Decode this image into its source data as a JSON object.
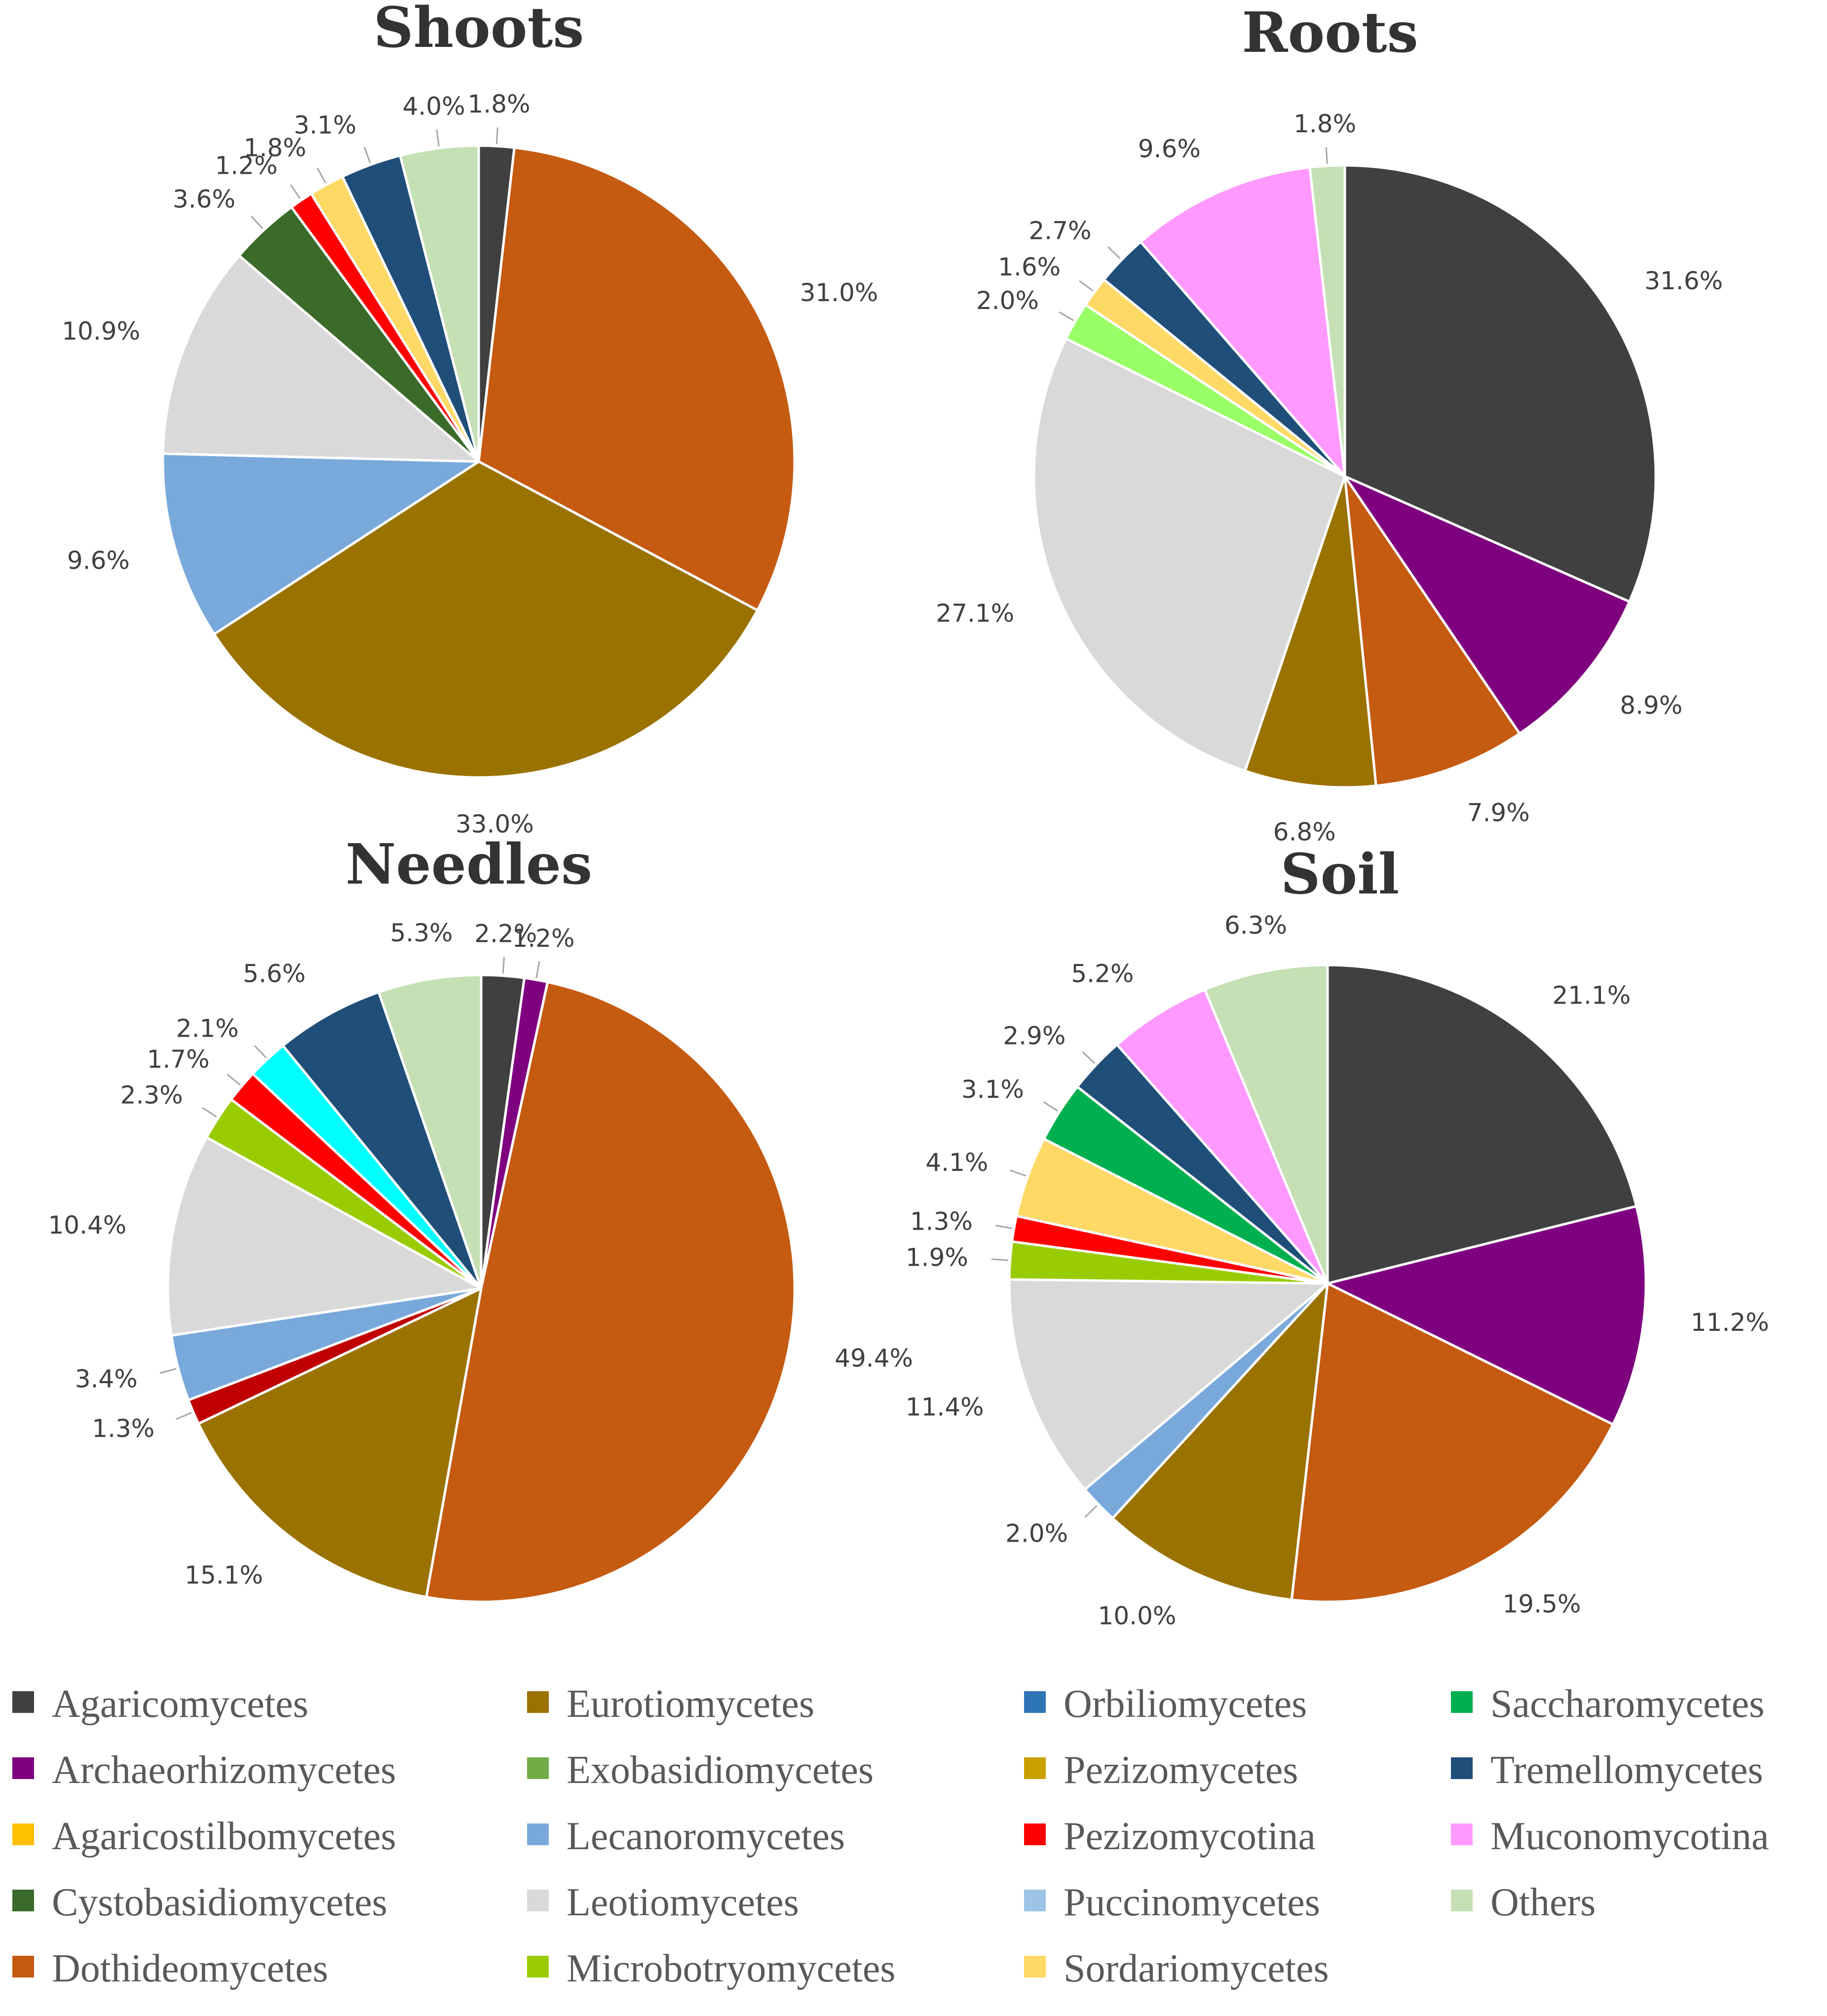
{
  "colors": {
    "Agaricomycetes": "#404040",
    "Archaeorhizomycetes": "#7f007f",
    "Agaricostilbomycetes": "#ffc000",
    "Cystobasidiomycetes": "#3b6b2a",
    "Dothideomycetes": "#c55a11",
    "Eurotiomycetes": "#9a7200",
    "Exobasidiomycetes": "#70ad47",
    "Lecanoromycetes": "#79a9db",
    "Leotiomycetes": "#d9d9d9",
    "Microbotryomycetes": "#99cc00",
    "Orbiliomycetes": "#2e75b6",
    "Pezizomycetes": "#c9a000",
    "Pezizomycotina": "#ff0000",
    "Puccinomycetes": "#9dc3e6",
    "Sordariomycetes": "#ffd966",
    "Saccharomycetes": "#00b050",
    "Tremellomycetes": "#1f4e79",
    "Muconomycotina": "#ff99ff",
    "Others": "#c5e0b4",
    "Cyan": "#00ffff",
    "DarkRed": "#c00000",
    "LightGreen": "#99ff66"
  },
  "legend": {
    "columns": [
      [
        "Agaricomycetes",
        "Archaeorhizomycetes",
        "Agaricostilbomycetes",
        "Cystobasidiomycetes",
        "Dothideomycetes"
      ],
      [
        "Eurotiomycetes",
        "Exobasidiomycetes",
        "Lecanoromycetes",
        "Leotiomycetes",
        "Microbotryomycetes"
      ],
      [
        "Orbiliomycetes",
        "Pezizomycetes",
        "Pezizomycotina",
        "Puccinomycetes",
        "Sordariomycetes"
      ],
      [
        "Saccharomycetes",
        "Tremellomycetes",
        "Muconomycotina",
        "Others"
      ]
    ]
  },
  "chart_data": [
    {
      "type": "pie",
      "title": "Shoots",
      "slices": [
        {
          "category": "Agaricomycetes",
          "value": 1.8,
          "label": "1.8%",
          "color_key": "Agaricomycetes"
        },
        {
          "category": "Dothideomycetes",
          "value": 31.0,
          "label": "31.0%",
          "color_key": "Dothideomycetes"
        },
        {
          "category": "Eurotiomycetes",
          "value": 33.0,
          "label": "33.0%",
          "color_key": "Eurotiomycetes"
        },
        {
          "category": "Lecanoromycetes",
          "value": 9.6,
          "label": "9.6%",
          "color_key": "Lecanoromycetes"
        },
        {
          "category": "Leotiomycetes",
          "value": 10.9,
          "label": "10.9%",
          "color_key": "Leotiomycetes"
        },
        {
          "category": "Cystobasidiomycetes",
          "value": 3.6,
          "label": "3.6%",
          "color_key": "Cystobasidiomycetes"
        },
        {
          "category": "Pezizomycotina",
          "value": 1.2,
          "label": "1.2%",
          "color_key": "Pezizomycotina"
        },
        {
          "category": "Sordariomycetes",
          "value": 1.8,
          "label": "1.8%",
          "color_key": "Sordariomycetes"
        },
        {
          "category": "Tremellomycetes",
          "value": 3.1,
          "label": "3.1%",
          "color_key": "Tremellomycetes"
        },
        {
          "category": "Others",
          "value": 4.0,
          "label": "4.0%",
          "color_key": "Others"
        }
      ]
    },
    {
      "type": "pie",
      "title": "Roots",
      "slices": [
        {
          "category": "Agaricomycetes",
          "value": 31.6,
          "label": "31.6%",
          "color_key": "Agaricomycetes"
        },
        {
          "category": "Archaeorhizomycetes",
          "value": 8.9,
          "label": "8.9%",
          "color_key": "Archaeorhizomycetes"
        },
        {
          "category": "Dothideomycetes",
          "value": 7.9,
          "label": "7.9%",
          "color_key": "Dothideomycetes"
        },
        {
          "category": "Eurotiomycetes",
          "value": 6.8,
          "label": "6.8%",
          "color_key": "Eurotiomycetes"
        },
        {
          "category": "Leotiomycetes",
          "value": 27.1,
          "label": "27.1%",
          "color_key": "Leotiomycetes"
        },
        {
          "category": "Exobasidiomycetes",
          "value": 2.0,
          "label": "2.0%",
          "color_key": "LightGreen"
        },
        {
          "category": "Sordariomycetes",
          "value": 1.6,
          "label": "1.6%",
          "color_key": "Sordariomycetes"
        },
        {
          "category": "Tremellomycetes",
          "value": 2.7,
          "label": "2.7%",
          "color_key": "Tremellomycetes"
        },
        {
          "category": "Muconomycotina",
          "value": 9.6,
          "label": "9.6%",
          "color_key": "Muconomycotina"
        },
        {
          "category": "Others",
          "value": 1.8,
          "label": "1.8%",
          "color_key": "Others"
        }
      ]
    },
    {
      "type": "pie",
      "title": "Needles",
      "slices": [
        {
          "category": "Agaricomycetes",
          "value": 2.2,
          "label": "2.2%",
          "color_key": "Agaricomycetes"
        },
        {
          "category": "Archaeorhizomycetes",
          "value": 1.2,
          "label": "1.2%",
          "color_key": "Archaeorhizomycetes"
        },
        {
          "category": "Dothideomycetes",
          "value": 49.4,
          "label": "49.4%",
          "color_key": "Dothideomycetes"
        },
        {
          "category": "Eurotiomycetes",
          "value": 15.1,
          "label": "15.1%",
          "color_key": "Eurotiomycetes"
        },
        {
          "category": "Pezizomycotina",
          "value": 1.3,
          "label": "1.3%",
          "color_key": "DarkRed"
        },
        {
          "category": "Lecanoromycetes",
          "value": 3.4,
          "label": "3.4%",
          "color_key": "Lecanoromycetes"
        },
        {
          "category": "Leotiomycetes",
          "value": 10.4,
          "label": "10.4%",
          "color_key": "Leotiomycetes"
        },
        {
          "category": "Microbotryomycetes",
          "value": 2.3,
          "label": "2.3%",
          "color_key": "Microbotryomycetes"
        },
        {
          "category": "Pezizomycotina",
          "value": 1.7,
          "label": "1.7%",
          "color_key": "Pezizomycotina"
        },
        {
          "category": "Orbiliomycetes",
          "value": 2.1,
          "label": "2.1%",
          "color_key": "Cyan"
        },
        {
          "category": "Tremellomycetes",
          "value": 5.6,
          "label": "5.6%",
          "color_key": "Tremellomycetes"
        },
        {
          "category": "Others",
          "value": 5.3,
          "label": "5.3%",
          "color_key": "Others"
        }
      ]
    },
    {
      "type": "pie",
      "title": "Soil",
      "slices": [
        {
          "category": "Agaricomycetes",
          "value": 21.1,
          "label": "21.1%",
          "color_key": "Agaricomycetes"
        },
        {
          "category": "Archaeorhizomycetes",
          "value": 11.2,
          "label": "11.2%",
          "color_key": "Archaeorhizomycetes"
        },
        {
          "category": "Dothideomycetes",
          "value": 19.5,
          "label": "19.5%",
          "color_key": "Dothideomycetes"
        },
        {
          "category": "Eurotiomycetes",
          "value": 10.0,
          "label": "10.0%",
          "color_key": "Eurotiomycetes"
        },
        {
          "category": "Lecanoromycetes",
          "value": 2.0,
          "label": "2.0%",
          "color_key": "Lecanoromycetes"
        },
        {
          "category": "Leotiomycetes",
          "value": 11.4,
          "label": "11.4%",
          "color_key": "Leotiomycetes"
        },
        {
          "category": "Microbotryomycetes",
          "value": 1.9,
          "label": "1.9%",
          "color_key": "Microbotryomycetes"
        },
        {
          "category": "Pezizomycotina",
          "value": 1.3,
          "label": "1.3%",
          "color_key": "Pezizomycotina"
        },
        {
          "category": "Sordariomycetes",
          "value": 4.1,
          "label": "4.1%",
          "color_key": "Sordariomycetes"
        },
        {
          "category": "Saccharomycetes",
          "value": 3.1,
          "label": "3.1%",
          "color_key": "Saccharomycetes"
        },
        {
          "category": "Tremellomycetes",
          "value": 2.9,
          "label": "2.9%",
          "color_key": "Tremellomycetes"
        },
        {
          "category": "Muconomycotina",
          "value": 5.2,
          "label": "5.2%",
          "color_key": "Muconomycotina"
        },
        {
          "category": "Others",
          "value": 6.3,
          "label": "6.3%",
          "color_key": "Others"
        }
      ]
    }
  ]
}
